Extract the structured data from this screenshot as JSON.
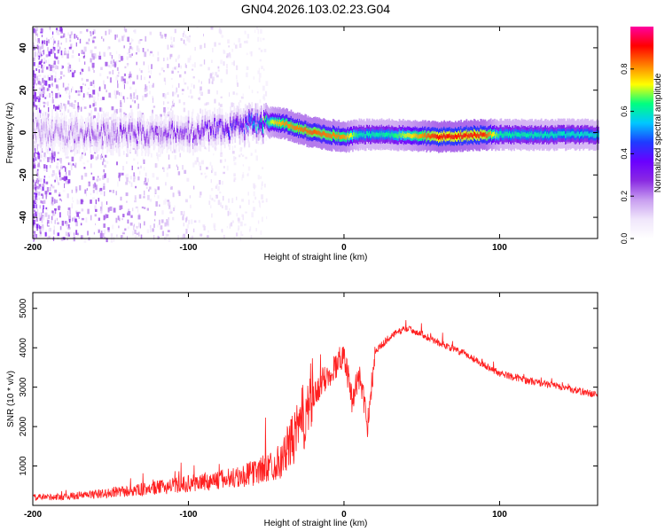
{
  "title": "GN04.2026.103.02.23.G04",
  "chart_data": [
    {
      "type": "heatmap",
      "xlabel": "Height of straight line (km)",
      "ylabel": "Frequency (Hz)",
      "xlim": [
        -200,
        163
      ],
      "ylim": [
        -50,
        50
      ],
      "xticks": [
        -200,
        -100,
        0,
        100
      ],
      "yticks": [
        -40,
        -20,
        0,
        20,
        40
      ],
      "grid": false,
      "colorbar": {
        "label": "Normalized spectral amplitude",
        "range": [
          0.0,
          1.0
        ],
        "ticks": [
          0.0,
          0.2,
          0.4,
          0.6,
          0.8
        ],
        "colors": [
          "#ffffff",
          "#f0e6fb",
          "#c89ef0",
          "#8a2be2",
          "#6a00ff",
          "#1e3cff",
          "#00c8ff",
          "#00ff80",
          "#ffff00",
          "#ff8000",
          "#ff0000",
          "#ff00a0"
        ]
      },
      "ridge": {
        "x": [
          -200,
          -180,
          -160,
          -140,
          -120,
          -100,
          -80,
          -65,
          -55,
          -45,
          -38,
          -30,
          -20,
          -10,
          0,
          10,
          30,
          60,
          90,
          100,
          130,
          163
        ],
        "y": [
          0,
          0,
          0,
          0,
          -1,
          0,
          1,
          3,
          4,
          5,
          4,
          2,
          0,
          -1,
          -2,
          -1,
          -1,
          -2,
          -1,
          -1,
          -1,
          -1
        ],
        "amplitude": [
          0.18,
          0.2,
          0.22,
          0.24,
          0.26,
          0.28,
          0.32,
          0.38,
          0.5,
          0.75,
          0.8,
          0.82,
          0.84,
          0.82,
          0.8,
          0.6,
          0.62,
          0.9,
          0.88,
          0.62,
          0.6,
          0.58
        ]
      }
    },
    {
      "type": "line",
      "xlabel": "Height of straight line (km)",
      "ylabel": "SNR (10 * v/v)",
      "xlim": [
        -200,
        163
      ],
      "ylim": [
        0,
        5400
      ],
      "xticks": [
        -200,
        -100,
        0,
        100
      ],
      "yticks": [
        1000,
        2000,
        3000,
        4000,
        5000
      ],
      "grid": false,
      "series": [
        {
          "color": "#ff2020",
          "x": [
            -200,
            -180,
            -160,
            -140,
            -120,
            -100,
            -80,
            -70,
            -60,
            -50,
            -40,
            -35,
            -30,
            -25,
            -20,
            -15,
            -10,
            -5,
            0,
            5,
            10,
            15,
            20,
            30,
            40,
            50,
            60,
            80,
            100,
            120,
            140,
            163
          ],
          "y": [
            200,
            220,
            280,
            350,
            450,
            550,
            650,
            700,
            800,
            950,
            1150,
            1550,
            1850,
            2350,
            2700,
            3050,
            3300,
            3550,
            3900,
            2700,
            3300,
            2050,
            3900,
            4300,
            4500,
            4350,
            4150,
            3800,
            3350,
            3150,
            3000,
            2800
          ]
        }
      ]
    }
  ]
}
